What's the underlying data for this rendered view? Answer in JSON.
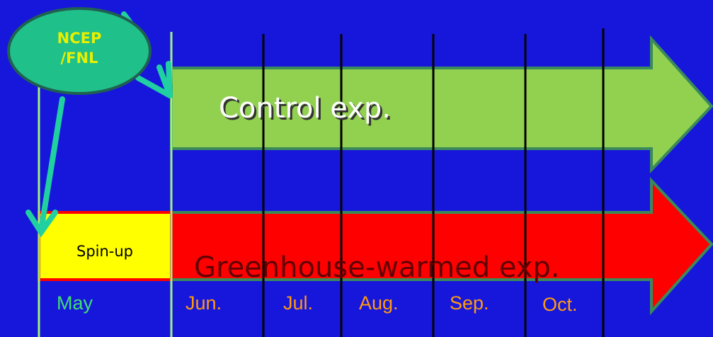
{
  "source": {
    "lines": [
      "NCEP",
      "/FNL"
    ]
  },
  "experiments": {
    "control": "Control exp.",
    "greenhouse": "Greenhouse-warmed exp.",
    "spinup": "Spin-up"
  },
  "months": [
    "May",
    "Jun.",
    "Jul.",
    "Aug.",
    "Sep.",
    "Oct."
  ]
}
